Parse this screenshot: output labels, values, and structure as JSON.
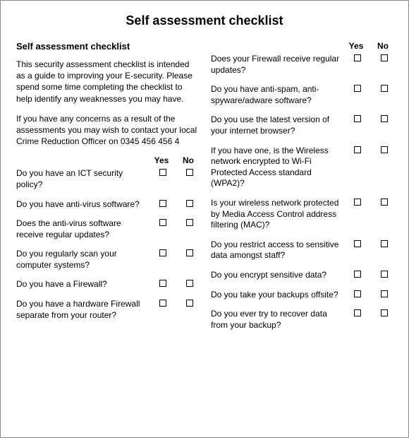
{
  "title": "Self assessment checklist",
  "sectionTitle": "Self assessment checklist",
  "intro1": "This security assessment checklist is intended as a guide to improving your E-security.  Please spend some time completing the checklist to help identify any weaknesses you may have.",
  "intro2": "If you have any concerns as a result of the assessments you may wish to contact your local Crime Reduction Officer on 0345 456 456 4",
  "yesLabel": "Yes",
  "noLabel": "No",
  "leftQuestions": [
    "Do you have an ICT security policy?",
    "Do you have anti-virus software?",
    "Does the anti-virus software receive regular updates?",
    "Do you regularly scan your computer systems?",
    "Do you have a Firewall?",
    "Do you have a hardware Firewall separate from  your router?"
  ],
  "rightQuestions": [
    "Does your Firewall receive regular updates?",
    "Do you have anti-spam, anti-spyware/adware software?",
    "Do you use the latest version of your internet browser?",
    "If you have one, is the Wireless network encrypted to Wi-Fi Protected Access standard (WPA2)?",
    "Is your wireless network protected by Media Access Control address filtering (MAC)?",
    "Do you restrict access to sensitive data amongst staff?",
    "Do you encrypt sensitive data?",
    "Do you take your backups offsite?",
    "Do you ever try to recover data from your backup?"
  ]
}
